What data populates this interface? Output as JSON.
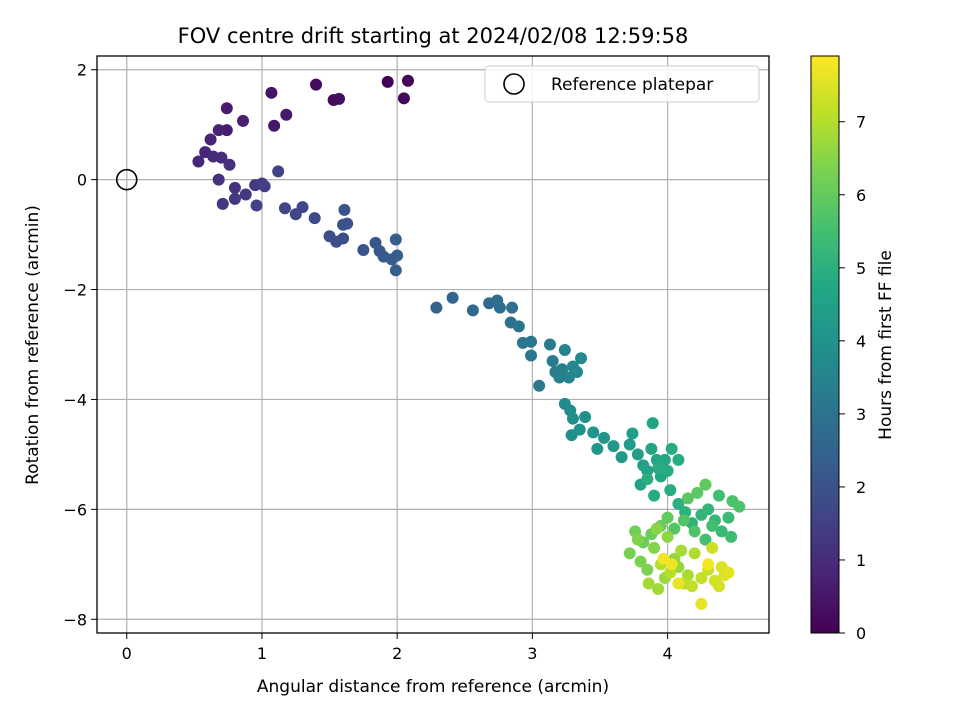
{
  "chart_data": {
    "type": "scatter",
    "title": "FOV centre drift starting at 2024/02/08 12:59:58",
    "xlabel": "Angular distance from reference (arcmin)",
    "ylabel": "Rotation from reference (arcmin)",
    "xlim": [
      -0.22,
      4.75
    ],
    "ylim": [
      -8.25,
      2.25
    ],
    "x_ticks": [
      0,
      1,
      2,
      3,
      4
    ],
    "x_tick_labels": [
      "0",
      "1",
      "2",
      "3",
      "4"
    ],
    "y_ticks": [
      2,
      0,
      -2,
      -4,
      -6,
      -8
    ],
    "y_tick_labels": [
      "2",
      "0",
      "−2",
      "−4",
      "−6",
      "−8"
    ],
    "grid": true,
    "legend": {
      "position": "top-right",
      "entries": [
        "Reference platepar"
      ]
    },
    "reference_point": {
      "name": "Reference platepar",
      "x": 0,
      "y": 0,
      "marker": "open-circle"
    },
    "colorbar": {
      "label": "Hours from first FF file",
      "range": [
        0,
        7.9
      ],
      "ticks": [
        0,
        1,
        2,
        3,
        4,
        5,
        6,
        7
      ],
      "tick_labels": [
        "0",
        "1",
        "2",
        "3",
        "4",
        "5",
        "6",
        "7"
      ],
      "colormap": "viridis",
      "colors": [
        "#440154",
        "#482475",
        "#414487",
        "#355f8d",
        "#2a788e",
        "#21918c",
        "#22a884",
        "#44bf70",
        "#7ad151",
        "#bddf26",
        "#fde725"
      ]
    },
    "points": [
      [
        1.93,
        1.78,
        0.05
      ],
      [
        2.08,
        1.8,
        0.1
      ],
      [
        2.05,
        1.48,
        0.15
      ],
      [
        1.4,
        1.73,
        0.2
      ],
      [
        1.53,
        1.45,
        0.25
      ],
      [
        1.57,
        1.47,
        0.3
      ],
      [
        1.07,
        1.58,
        0.4
      ],
      [
        1.09,
        0.98,
        0.5
      ],
      [
        1.18,
        1.18,
        0.55
      ],
      [
        0.74,
        1.3,
        0.6
      ],
      [
        0.74,
        0.9,
        0.65
      ],
      [
        0.86,
        1.07,
        0.7
      ],
      [
        0.68,
        0.9,
        0.75
      ],
      [
        0.62,
        0.73,
        0.8
      ],
      [
        0.58,
        0.5,
        0.85
      ],
      [
        0.53,
        0.33,
        0.9
      ],
      [
        0.64,
        0.42,
        0.95
      ],
      [
        0.7,
        0.4,
        1.0
      ],
      [
        0.76,
        0.27,
        1.05
      ],
      [
        0.68,
        0.0,
        1.1
      ],
      [
        0.8,
        -0.15,
        1.15
      ],
      [
        0.71,
        -0.44,
        1.2
      ],
      [
        0.8,
        -0.35,
        1.25
      ],
      [
        0.88,
        -0.27,
        1.3
      ],
      [
        0.95,
        -0.1,
        1.35
      ],
      [
        1.0,
        -0.07,
        1.4
      ],
      [
        1.02,
        -0.12,
        1.45
      ],
      [
        0.96,
        -0.47,
        1.5
      ],
      [
        1.12,
        0.15,
        1.55
      ],
      [
        1.17,
        -0.52,
        1.6
      ],
      [
        1.25,
        -0.63,
        1.65
      ],
      [
        1.3,
        -0.5,
        1.7
      ],
      [
        1.39,
        -0.7,
        1.75
      ],
      [
        1.5,
        -1.03,
        1.8
      ],
      [
        1.55,
        -1.13,
        1.85
      ],
      [
        1.6,
        -1.07,
        1.9
      ],
      [
        1.6,
        -0.82,
        1.95
      ],
      [
        1.61,
        -0.55,
        2.0
      ],
      [
        1.63,
        -0.8,
        2.0
      ],
      [
        1.75,
        -1.28,
        2.05
      ],
      [
        1.84,
        -1.15,
        2.1
      ],
      [
        1.87,
        -1.3,
        2.15
      ],
      [
        1.9,
        -1.4,
        2.2
      ],
      [
        1.96,
        -1.45,
        2.25
      ],
      [
        1.99,
        -1.09,
        2.3
      ],
      [
        2.0,
        -1.38,
        2.35
      ],
      [
        1.99,
        -1.65,
        2.4
      ],
      [
        2.29,
        -2.33,
        2.5
      ],
      [
        2.41,
        -2.15,
        2.55
      ],
      [
        2.56,
        -2.38,
        2.65
      ],
      [
        2.68,
        -2.25,
        2.75
      ],
      [
        2.74,
        -2.2,
        2.8
      ],
      [
        2.76,
        -2.33,
        2.85
      ],
      [
        2.85,
        -2.33,
        2.9
      ],
      [
        2.84,
        -2.6,
        2.95
      ],
      [
        2.9,
        -2.67,
        3.0
      ],
      [
        2.93,
        -2.97,
        3.05
      ],
      [
        2.99,
        -2.95,
        3.1
      ],
      [
        2.99,
        -3.2,
        3.15
      ],
      [
        3.05,
        -3.75,
        3.2
      ],
      [
        3.13,
        -3.0,
        3.25
      ],
      [
        3.15,
        -3.3,
        3.3
      ],
      [
        3.17,
        -3.5,
        3.35
      ],
      [
        3.2,
        -3.6,
        3.4
      ],
      [
        3.22,
        -3.45,
        3.45
      ],
      [
        3.24,
        -3.1,
        3.5
      ],
      [
        3.27,
        -3.6,
        3.55
      ],
      [
        3.3,
        -3.4,
        3.6
      ],
      [
        3.33,
        -3.5,
        3.65
      ],
      [
        3.36,
        -3.25,
        3.7
      ],
      [
        3.24,
        -4.08,
        3.75
      ],
      [
        3.28,
        -4.2,
        3.8
      ],
      [
        3.3,
        -4.35,
        3.85
      ],
      [
        3.29,
        -4.65,
        3.9
      ],
      [
        3.35,
        -4.55,
        3.95
      ],
      [
        3.39,
        -4.32,
        4.0
      ],
      [
        3.45,
        -4.6,
        4.05
      ],
      [
        3.53,
        -4.7,
        4.1
      ],
      [
        3.48,
        -4.9,
        4.15
      ],
      [
        3.6,
        -4.85,
        4.2
      ],
      [
        3.66,
        -5.05,
        4.25
      ],
      [
        3.72,
        -4.82,
        4.3
      ],
      [
        3.74,
        -4.62,
        4.35
      ],
      [
        3.78,
        -5.0,
        4.4
      ],
      [
        3.82,
        -5.2,
        4.45
      ],
      [
        3.8,
        -5.55,
        4.5
      ],
      [
        3.85,
        -5.3,
        4.55
      ],
      [
        3.89,
        -4.43,
        4.6
      ],
      [
        3.88,
        -4.9,
        4.6
      ],
      [
        3.92,
        -5.1,
        4.65
      ],
      [
        3.95,
        -5.4,
        4.7
      ],
      [
        3.98,
        -5.1,
        4.75
      ],
      [
        3.9,
        -5.75,
        4.8
      ],
      [
        4.0,
        -5.3,
        4.8
      ],
      [
        4.03,
        -4.9,
        4.85
      ],
      [
        4.08,
        -5.1,
        4.85
      ],
      [
        4.02,
        -5.65,
        4.9
      ],
      [
        3.93,
        -5.25,
        4.9
      ],
      [
        3.85,
        -5.45,
        4.95
      ],
      [
        4.08,
        -5.9,
        5.0
      ],
      [
        4.13,
        -6.05,
        5.05
      ],
      [
        4.18,
        -6.25,
        5.1
      ],
      [
        4.25,
        -6.1,
        5.15
      ],
      [
        4.3,
        -6.0,
        5.2
      ],
      [
        4.35,
        -6.2,
        5.25
      ],
      [
        4.4,
        -6.4,
        5.3
      ],
      [
        4.45,
        -6.15,
        5.35
      ],
      [
        4.47,
        -6.5,
        5.4
      ],
      [
        4.38,
        -5.75,
        5.45
      ],
      [
        4.33,
        -6.3,
        5.5
      ],
      [
        4.28,
        -6.55,
        5.55
      ],
      [
        4.48,
        -5.85,
        5.6
      ],
      [
        4.53,
        -5.95,
        5.65
      ],
      [
        4.2,
        -6.4,
        5.7
      ],
      [
        4.12,
        -6.2,
        5.75
      ],
      [
        4.05,
        -6.35,
        5.8
      ],
      [
        4.15,
        -5.8,
        5.85
      ],
      [
        4.22,
        -5.7,
        5.9
      ],
      [
        4.28,
        -5.55,
        5.95
      ],
      [
        4.0,
        -6.15,
        6.0
      ],
      [
        3.95,
        -6.3,
        6.05
      ],
      [
        3.88,
        -6.45,
        6.1
      ],
      [
        3.82,
        -6.6,
        6.15
      ],
      [
        3.76,
        -6.4,
        6.2
      ],
      [
        3.72,
        -6.8,
        6.25
      ],
      [
        3.8,
        -6.95,
        6.3
      ],
      [
        3.85,
        -7.1,
        6.35
      ],
      [
        3.78,
        -6.55,
        6.4
      ],
      [
        3.9,
        -6.7,
        6.45
      ],
      [
        3.92,
        -6.35,
        6.5
      ],
      [
        4.0,
        -6.5,
        6.55
      ],
      [
        4.05,
        -6.9,
        6.6
      ],
      [
        4.08,
        -7.05,
        6.65
      ],
      [
        3.98,
        -7.25,
        6.7
      ],
      [
        3.93,
        -7.45,
        6.75
      ],
      [
        3.86,
        -7.35,
        6.8
      ],
      [
        4.1,
        -6.75,
        6.85
      ],
      [
        4.15,
        -7.2,
        6.9
      ],
      [
        4.2,
        -6.8,
        6.95
      ],
      [
        3.95,
        -7.0,
        7.0
      ],
      [
        4.02,
        -7.15,
        7.05
      ],
      [
        4.12,
        -7.35,
        7.1
      ],
      [
        4.18,
        -7.4,
        7.15
      ],
      [
        4.25,
        -7.25,
        7.2
      ],
      [
        4.3,
        -7.1,
        7.25
      ],
      [
        4.33,
        -6.7,
        7.3
      ],
      [
        4.35,
        -7.3,
        7.35
      ],
      [
        4.38,
        -7.4,
        7.4
      ],
      [
        4.4,
        -7.05,
        7.45
      ],
      [
        4.42,
        -7.2,
        7.5
      ],
      [
        4.45,
        -7.15,
        7.55
      ],
      [
        4.25,
        -7.72,
        7.6
      ],
      [
        4.08,
        -7.35,
        7.65
      ],
      [
        4.03,
        -7.0,
        7.7
      ],
      [
        3.97,
        -6.9,
        7.75
      ],
      [
        4.3,
        -7.0,
        7.8
      ]
    ]
  }
}
